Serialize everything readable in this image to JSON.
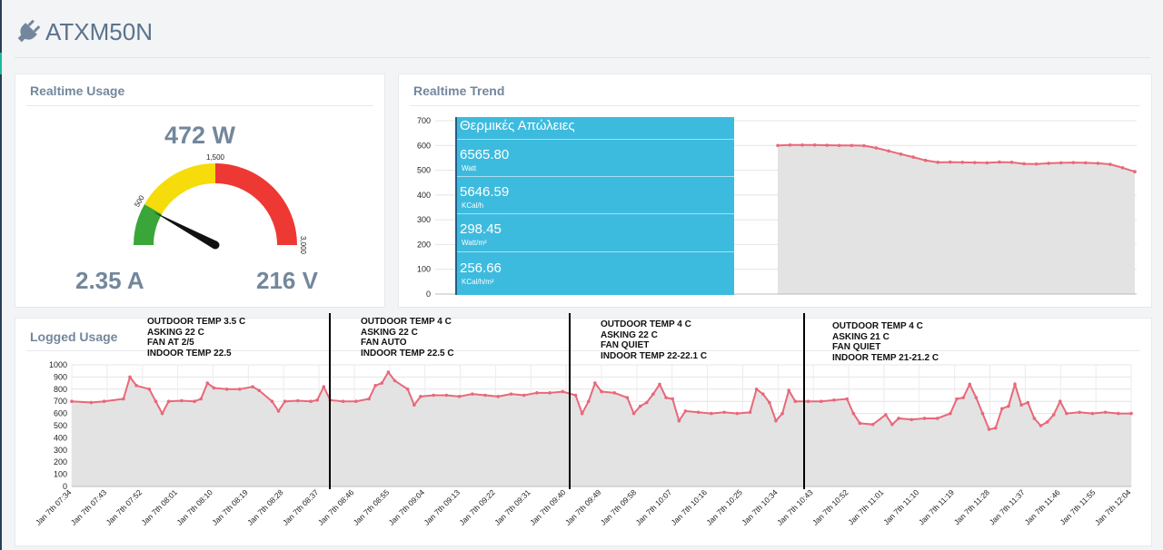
{
  "page": {
    "title": "ATXM50N",
    "icon": "plug-icon"
  },
  "realtime_usage": {
    "title": "Realtime Usage",
    "power": "472 W",
    "current": "2.35 A",
    "voltage": "216 V",
    "gauge": {
      "min": 0,
      "max": 3000,
      "value": 472,
      "tick_labels": [
        "500",
        "1,500",
        "3,000"
      ],
      "zones": [
        {
          "from": 0,
          "to": 500,
          "color": "#3aa63a"
        },
        {
          "from": 500,
          "to": 1500,
          "color": "#f5dc0a"
        },
        {
          "from": 1500,
          "to": 3000,
          "color": "#ee3833"
        }
      ]
    }
  },
  "realtime_trend": {
    "title": "Realtime Trend",
    "info_box": {
      "heading": "Θερμικές Απώλειες",
      "rows": [
        {
          "value": "6565.80",
          "unit": "Watt"
        },
        {
          "value": "5646.59",
          "unit": "KCal/h"
        },
        {
          "value": "298.45",
          "unit": "Watt/m²"
        },
        {
          "value": "256.66",
          "unit": "KCal/h/m²"
        }
      ]
    }
  },
  "logged_usage": {
    "title": "Logged Usage",
    "annotations": [
      [
        "OUTDOOR TEMP 3.5 C",
        "ASKING 22 C",
        "FAN AT 2/5",
        "INDOOR TEMP 22.5"
      ],
      [
        "OUTDOOR TEMP 4 C",
        "ASKING 22 C",
        "FAN AUTO",
        "INDOOR TEMP 22.5 C"
      ],
      [
        "OUTDOOR TEMP 4 C",
        "ASKING 22 C",
        "FAN QUIET",
        "INDOOR TEMP 22-22.1 C"
      ],
      [
        "OUTDOOR TEMP 4 C",
        "ASKING 21 C",
        "FAN QUIET",
        "INDOOR TEMP 21-21.2 C"
      ]
    ]
  },
  "chart_data": [
    {
      "type": "area",
      "title": "",
      "ylim": [
        0,
        700
      ],
      "yticks": [
        0,
        100,
        200,
        300,
        400,
        500,
        600,
        700
      ],
      "grid": true,
      "color": "#e8687a",
      "values": [
        600,
        602,
        602,
        602,
        601,
        600,
        600,
        599,
        590,
        578,
        565,
        553,
        540,
        532,
        533,
        532,
        531,
        530,
        533,
        532,
        526,
        525,
        528,
        530,
        531,
        530,
        528,
        524,
        510,
        494
      ]
    },
    {
      "type": "area",
      "title": "",
      "ylim": [
        0,
        1000
      ],
      "yticks": [
        0,
        100,
        200,
        300,
        400,
        500,
        600,
        700,
        800,
        900,
        1000
      ],
      "grid": true,
      "color": "#e8687a",
      "x_labels": [
        "Jan 7th 07:34",
        "Jan 7th 07:43",
        "Jan 7th 07:52",
        "Jan 7th 08:01",
        "Jan 7th 08:10",
        "Jan 7th 08:19",
        "Jan 7th 08:28",
        "Jan 7th 08:37",
        "Jan 7th 08:46",
        "Jan 7th 08:55",
        "Jan 7th 09:04",
        "Jan 7th 09:13",
        "Jan 7th 09:22",
        "Jan 7th 09:31",
        "Jan 7th 09:40",
        "Jan 7th 09:49",
        "Jan 7th 09:58",
        "Jan 7th 10:07",
        "Jan 7th 10:16",
        "Jan 7th 10:25",
        "Jan 7th 10:34",
        "Jan 7th 10:43",
        "Jan 7th 10:52",
        "Jan 7th 11:01",
        "Jan 7th 11:10",
        "Jan 7th 11:19",
        "Jan 7th 11:28",
        "Jan 7th 11:37",
        "Jan 7th 11:46",
        "Jan 7th 11:55",
        "Jan 7th 12:04"
      ],
      "values": [
        [
          0,
          700
        ],
        [
          3,
          690
        ],
        [
          5,
          700
        ],
        [
          8,
          720
        ],
        [
          9,
          900
        ],
        [
          10,
          830
        ],
        [
          12,
          800
        ],
        [
          13,
          700
        ],
        [
          14,
          600
        ],
        [
          15,
          700
        ],
        [
          17,
          705
        ],
        [
          19,
          700
        ],
        [
          20,
          720
        ],
        [
          21,
          850
        ],
        [
          22,
          810
        ],
        [
          24,
          800
        ],
        [
          26,
          800
        ],
        [
          28,
          820
        ],
        [
          29,
          790
        ],
        [
          31,
          700
        ],
        [
          32,
          620
        ],
        [
          33,
          700
        ],
        [
          35,
          705
        ],
        [
          37,
          700
        ],
        [
          38,
          710
        ],
        [
          39,
          820
        ],
        [
          40,
          710
        ],
        [
          42,
          700
        ],
        [
          44,
          700
        ],
        [
          46,
          720
        ],
        [
          47,
          830
        ],
        [
          48,
          850
        ],
        [
          49,
          940
        ],
        [
          50,
          870
        ],
        [
          52,
          800
        ],
        [
          53,
          670
        ],
        [
          54,
          740
        ],
        [
          56,
          750
        ],
        [
          58,
          750
        ],
        [
          60,
          740
        ],
        [
          62,
          760
        ],
        [
          64,
          750
        ],
        [
          66,
          740
        ],
        [
          68,
          760
        ],
        [
          70,
          750
        ],
        [
          72,
          770
        ],
        [
          74,
          770
        ],
        [
          76,
          780
        ],
        [
          78,
          750
        ],
        [
          79,
          600
        ],
        [
          80,
          700
        ],
        [
          81,
          850
        ],
        [
          82,
          780
        ],
        [
          84,
          770
        ],
        [
          86,
          730
        ],
        [
          87,
          600
        ],
        [
          88,
          660
        ],
        [
          89,
          690
        ],
        [
          90,
          760
        ],
        [
          91,
          840
        ],
        [
          92,
          730
        ],
        [
          93,
          720
        ],
        [
          94,
          540
        ],
        [
          95,
          620
        ],
        [
          97,
          610
        ],
        [
          99,
          600
        ],
        [
          101,
          610
        ],
        [
          103,
          600
        ],
        [
          105,
          610
        ],
        [
          106,
          800
        ],
        [
          107,
          760
        ],
        [
          108,
          690
        ],
        [
          109,
          540
        ],
        [
          110,
          600
        ],
        [
          111,
          790
        ],
        [
          112,
          700
        ],
        [
          114,
          700
        ],
        [
          116,
          700
        ],
        [
          118,
          710
        ],
        [
          120,
          720
        ],
        [
          121,
          600
        ],
        [
          122,
          520
        ],
        [
          124,
          510
        ],
        [
          126,
          590
        ],
        [
          127,
          510
        ],
        [
          128,
          560
        ],
        [
          130,
          550
        ],
        [
          132,
          560
        ],
        [
          134,
          560
        ],
        [
          136,
          600
        ],
        [
          137,
          720
        ],
        [
          138,
          730
        ],
        [
          139,
          840
        ],
        [
          140,
          730
        ],
        [
          141,
          600
        ],
        [
          142,
          470
        ],
        [
          143,
          480
        ],
        [
          144,
          640
        ],
        [
          145,
          660
        ],
        [
          146,
          840
        ],
        [
          147,
          670
        ],
        [
          148,
          690
        ],
        [
          149,
          560
        ],
        [
          150,
          500
        ],
        [
          151,
          530
        ],
        [
          152,
          590
        ],
        [
          153,
          700
        ],
        [
          154,
          600
        ],
        [
          156,
          610
        ],
        [
          158,
          600
        ],
        [
          160,
          610
        ],
        [
          162,
          600
        ],
        [
          164,
          600
        ]
      ]
    }
  ]
}
